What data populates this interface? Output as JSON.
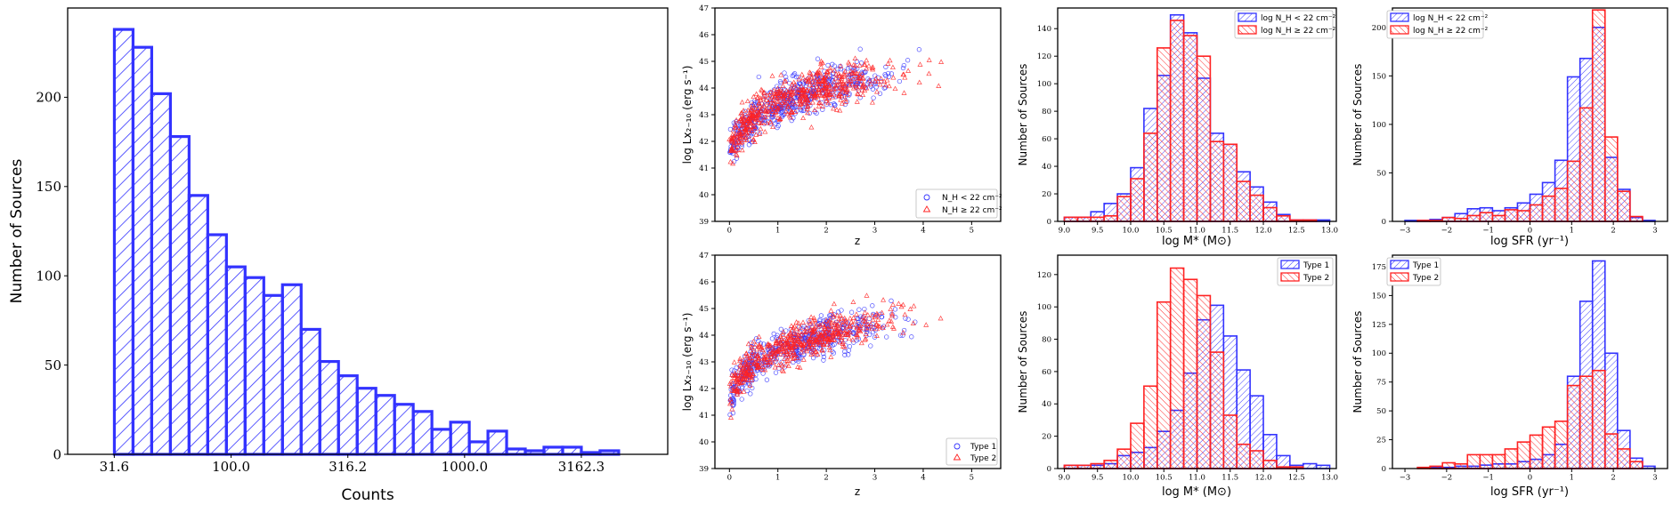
{
  "colors": {
    "blue": "#3333ff",
    "red": "#ff2222",
    "black": "#000000"
  },
  "chart_data": [
    {
      "id": "counts_hist",
      "type": "bar",
      "title": "",
      "xlabel": "Counts",
      "ylabel": "Number of Sources",
      "xscale": "log",
      "xticks": [
        31.6,
        100.0,
        316.2,
        1000.0,
        3162.3
      ],
      "xtick_labels": [
        "31.6",
        "100.0",
        "316.2",
        "1000.0",
        "3162.3"
      ],
      "yticks": [
        0,
        50,
        100,
        150,
        200
      ],
      "ylim": [
        0,
        250
      ],
      "xlim_log10": [
        1.3,
        3.87
      ],
      "bin_edges_log10": [
        1.5,
        1.58,
        1.66,
        1.74,
        1.82,
        1.9,
        1.98,
        2.06,
        2.14,
        2.22,
        2.3,
        2.38,
        2.46,
        2.54,
        2.62,
        2.7,
        2.78,
        2.86,
        2.94,
        3.02,
        3.1,
        3.18,
        3.26,
        3.34,
        3.42,
        3.5,
        3.58,
        3.66
      ],
      "values": [
        238,
        228,
        202,
        178,
        145,
        123,
        105,
        99,
        89,
        95,
        70,
        52,
        44,
        37,
        33,
        28,
        24,
        14,
        18,
        7,
        13,
        3,
        2,
        4,
        4,
        1,
        2
      ],
      "series": [
        {
          "name": "Counts",
          "color": "blue",
          "hatch": "///"
        }
      ]
    },
    {
      "id": "lx_z_nh",
      "type": "scatter",
      "xlabel": "z",
      "ylabel": "log Lx₂₋₁₀ (erg s⁻¹)",
      "xlim": [
        -0.3,
        5.6
      ],
      "ylim": [
        39,
        47
      ],
      "xticks": [
        0,
        1,
        2,
        3,
        4,
        5
      ],
      "yticks": [
        39,
        40,
        41,
        42,
        43,
        44,
        45,
        46,
        47
      ],
      "series": [
        {
          "name": "N_H < 22 cm⁻²",
          "marker": "circle",
          "color": "blue",
          "n": 520,
          "seed": 11
        },
        {
          "name": "N_H ≥ 22 cm⁻²",
          "marker": "triangle",
          "color": "red",
          "n": 560,
          "seed": 23
        }
      ],
      "legend": {
        "loc": "lower right",
        "labels": [
          "N_H < 22 cm⁻²",
          "N_H ≥ 22 cm⁻²"
        ]
      }
    },
    {
      "id": "mstar_nh",
      "type": "bar",
      "xlabel": "log M* (M⊙)",
      "ylabel": "Number of Sources",
      "xlim": [
        8.9,
        13.1
      ],
      "ylim": [
        0,
        155
      ],
      "xticks": [
        9.0,
        9.5,
        10.0,
        10.5,
        11.0,
        11.5,
        12.0,
        12.5,
        13.0
      ],
      "xtick_labels": [
        "9.0",
        "9.5",
        "10.0",
        "10.5",
        "11.0",
        "11.5",
        "12.0",
        "12.5",
        "13.0"
      ],
      "yticks": [
        0,
        20,
        40,
        60,
        80,
        100,
        120,
        140
      ],
      "bin_edges": [
        9.0,
        9.2,
        9.4,
        9.6,
        9.8,
        10.0,
        10.2,
        10.4,
        10.6,
        10.8,
        11.0,
        11.2,
        11.4,
        11.6,
        11.8,
        12.0,
        12.2,
        12.4,
        12.6,
        12.8,
        13.0
      ],
      "series": [
        {
          "name": "log N_H < 22 cm⁻²",
          "color": "blue",
          "hatch": "///",
          "values": [
            3,
            3,
            7,
            13,
            20,
            39,
            82,
            106,
            150,
            137,
            104,
            64,
            56,
            36,
            25,
            14,
            5,
            1,
            1,
            1
          ]
        },
        {
          "name": "log N_H ≥ 22 cm⁻²",
          "color": "red",
          "hatch": "\\\\\\",
          "values": [
            3,
            3,
            3,
            4,
            18,
            31,
            64,
            126,
            146,
            135,
            120,
            58,
            56,
            29,
            19,
            10,
            4,
            1,
            1,
            0
          ]
        }
      ],
      "legend": {
        "loc": "upper right",
        "labels": [
          "log N_H < 22 cm⁻²",
          "log N_H ≥ 22 cm⁻²"
        ]
      }
    },
    {
      "id": "sfr_nh",
      "type": "bar",
      "xlabel": "log SFR (yr⁻¹)",
      "ylabel": "Number of Sources",
      "xlim": [
        -3.3,
        3.3
      ],
      "ylim": [
        0,
        220
      ],
      "xticks": [
        -3,
        -2,
        -1,
        0,
        1,
        2,
        3
      ],
      "xtick_labels": [
        "−3",
        "−2",
        "−1",
        "0",
        "1",
        "2",
        "3"
      ],
      "yticks": [
        0,
        50,
        100,
        150,
        200
      ],
      "bin_edges": [
        -3.0,
        -2.7,
        -2.4,
        -2.1,
        -1.8,
        -1.5,
        -1.2,
        -0.9,
        -0.6,
        -0.3,
        0.0,
        0.3,
        0.6,
        0.9,
        1.2,
        1.5,
        1.8,
        2.1,
        2.4,
        2.7,
        3.0
      ],
      "series": [
        {
          "name": "log N_H < 22 cm⁻²",
          "color": "blue",
          "hatch": "///",
          "values": [
            1,
            1,
            2,
            4,
            8,
            13,
            14,
            11,
            14,
            19,
            28,
            40,
            63,
            149,
            168,
            200,
            66,
            33,
            4,
            1
          ]
        },
        {
          "name": "log N_H ≥ 22 cm⁻²",
          "color": "red",
          "hatch": "\\\\\\",
          "values": [
            0,
            1,
            1,
            4,
            3,
            6,
            9,
            6,
            12,
            11,
            17,
            26,
            34,
            62,
            117,
            218,
            87,
            31,
            5,
            0
          ]
        }
      ],
      "legend": {
        "loc": "upper left",
        "labels": [
          "log N_H < 22 cm⁻²",
          "log N_H ≥ 22 cm⁻²"
        ]
      }
    },
    {
      "id": "lx_z_type",
      "type": "scatter",
      "xlabel": "z",
      "ylabel": "log Lx₂₋₁₀ (erg s⁻¹)",
      "xlim": [
        -0.3,
        5.6
      ],
      "ylim": [
        39,
        47
      ],
      "xticks": [
        0,
        1,
        2,
        3,
        4,
        5
      ],
      "yticks": [
        39,
        40,
        41,
        42,
        43,
        44,
        45,
        46,
        47
      ],
      "series": [
        {
          "name": "Type 1",
          "marker": "circle",
          "color": "blue",
          "n": 520,
          "seed": 37
        },
        {
          "name": "Type 2",
          "marker": "triangle",
          "color": "red",
          "n": 540,
          "seed": 53
        }
      ],
      "legend": {
        "loc": "lower right",
        "labels": [
          "Type 1",
          "Type 2"
        ]
      }
    },
    {
      "id": "mstar_type",
      "type": "bar",
      "xlabel": "log M* (M⊙)",
      "ylabel": "Number of Sources",
      "xlim": [
        8.9,
        13.1
      ],
      "ylim": [
        0,
        132
      ],
      "xticks": [
        9.0,
        9.5,
        10.0,
        10.5,
        11.0,
        11.5,
        12.0,
        12.5,
        13.0
      ],
      "xtick_labels": [
        "9.0",
        "9.5",
        "10.0",
        "10.5",
        "11.0",
        "11.5",
        "12.0",
        "12.5",
        "13.0"
      ],
      "yticks": [
        0,
        20,
        40,
        60,
        80,
        100,
        120
      ],
      "bin_edges": [
        9.0,
        9.2,
        9.4,
        9.6,
        9.8,
        10.0,
        10.2,
        10.4,
        10.6,
        10.8,
        11.0,
        11.2,
        11.4,
        11.6,
        11.8,
        12.0,
        12.2,
        12.4,
        12.6,
        12.8,
        13.0
      ],
      "series": [
        {
          "name": "Type 1",
          "color": "blue",
          "hatch": "///",
          "values": [
            2,
            2,
            2,
            3,
            8,
            10,
            13,
            23,
            36,
            59,
            92,
            101,
            82,
            61,
            45,
            21,
            8,
            2,
            3,
            2
          ]
        },
        {
          "name": "Type 2",
          "color": "red",
          "hatch": "\\\\\\",
          "values": [
            2,
            2,
            3,
            5,
            12,
            28,
            51,
            103,
            124,
            117,
            107,
            72,
            33,
            15,
            11,
            5,
            1,
            1,
            0,
            0
          ]
        }
      ],
      "legend": {
        "loc": "upper right",
        "labels": [
          "Type 1",
          "Type 2"
        ]
      }
    },
    {
      "id": "sfr_type",
      "type": "bar",
      "xlabel": "log SFR (yr⁻¹)",
      "ylabel": "Number of Sources",
      "xlim": [
        -3.3,
        3.3
      ],
      "ylim": [
        0,
        185
      ],
      "xticks": [
        -3,
        -2,
        -1,
        0,
        1,
        2,
        3
      ],
      "xtick_labels": [
        "−3",
        "−2",
        "−1",
        "0",
        "1",
        "2",
        "3"
      ],
      "yticks": [
        0,
        25,
        50,
        75,
        100,
        125,
        150,
        175
      ],
      "bin_edges": [
        -3.0,
        -2.7,
        -2.4,
        -2.1,
        -1.8,
        -1.5,
        -1.2,
        -0.9,
        -0.6,
        -0.3,
        0.0,
        0.3,
        0.6,
        0.9,
        1.2,
        1.5,
        1.8,
        2.1,
        2.4,
        2.7,
        3.0
      ],
      "series": [
        {
          "name": "Type 1",
          "color": "blue",
          "hatch": "///",
          "values": [
            0,
            0,
            1,
            1,
            2,
            2,
            3,
            4,
            4,
            6,
            8,
            12,
            21,
            80,
            145,
            180,
            100,
            33,
            9,
            2
          ]
        },
        {
          "name": "Type 2",
          "color": "red",
          "hatch": "\\\\\\",
          "values": [
            0,
            1,
            2,
            5,
            4,
            12,
            12,
            12,
            17,
            23,
            29,
            36,
            41,
            72,
            80,
            85,
            30,
            17,
            6,
            0
          ]
        }
      ],
      "legend": {
        "loc": "upper left",
        "labels": [
          "Type 1",
          "Type 2"
        ]
      }
    }
  ]
}
